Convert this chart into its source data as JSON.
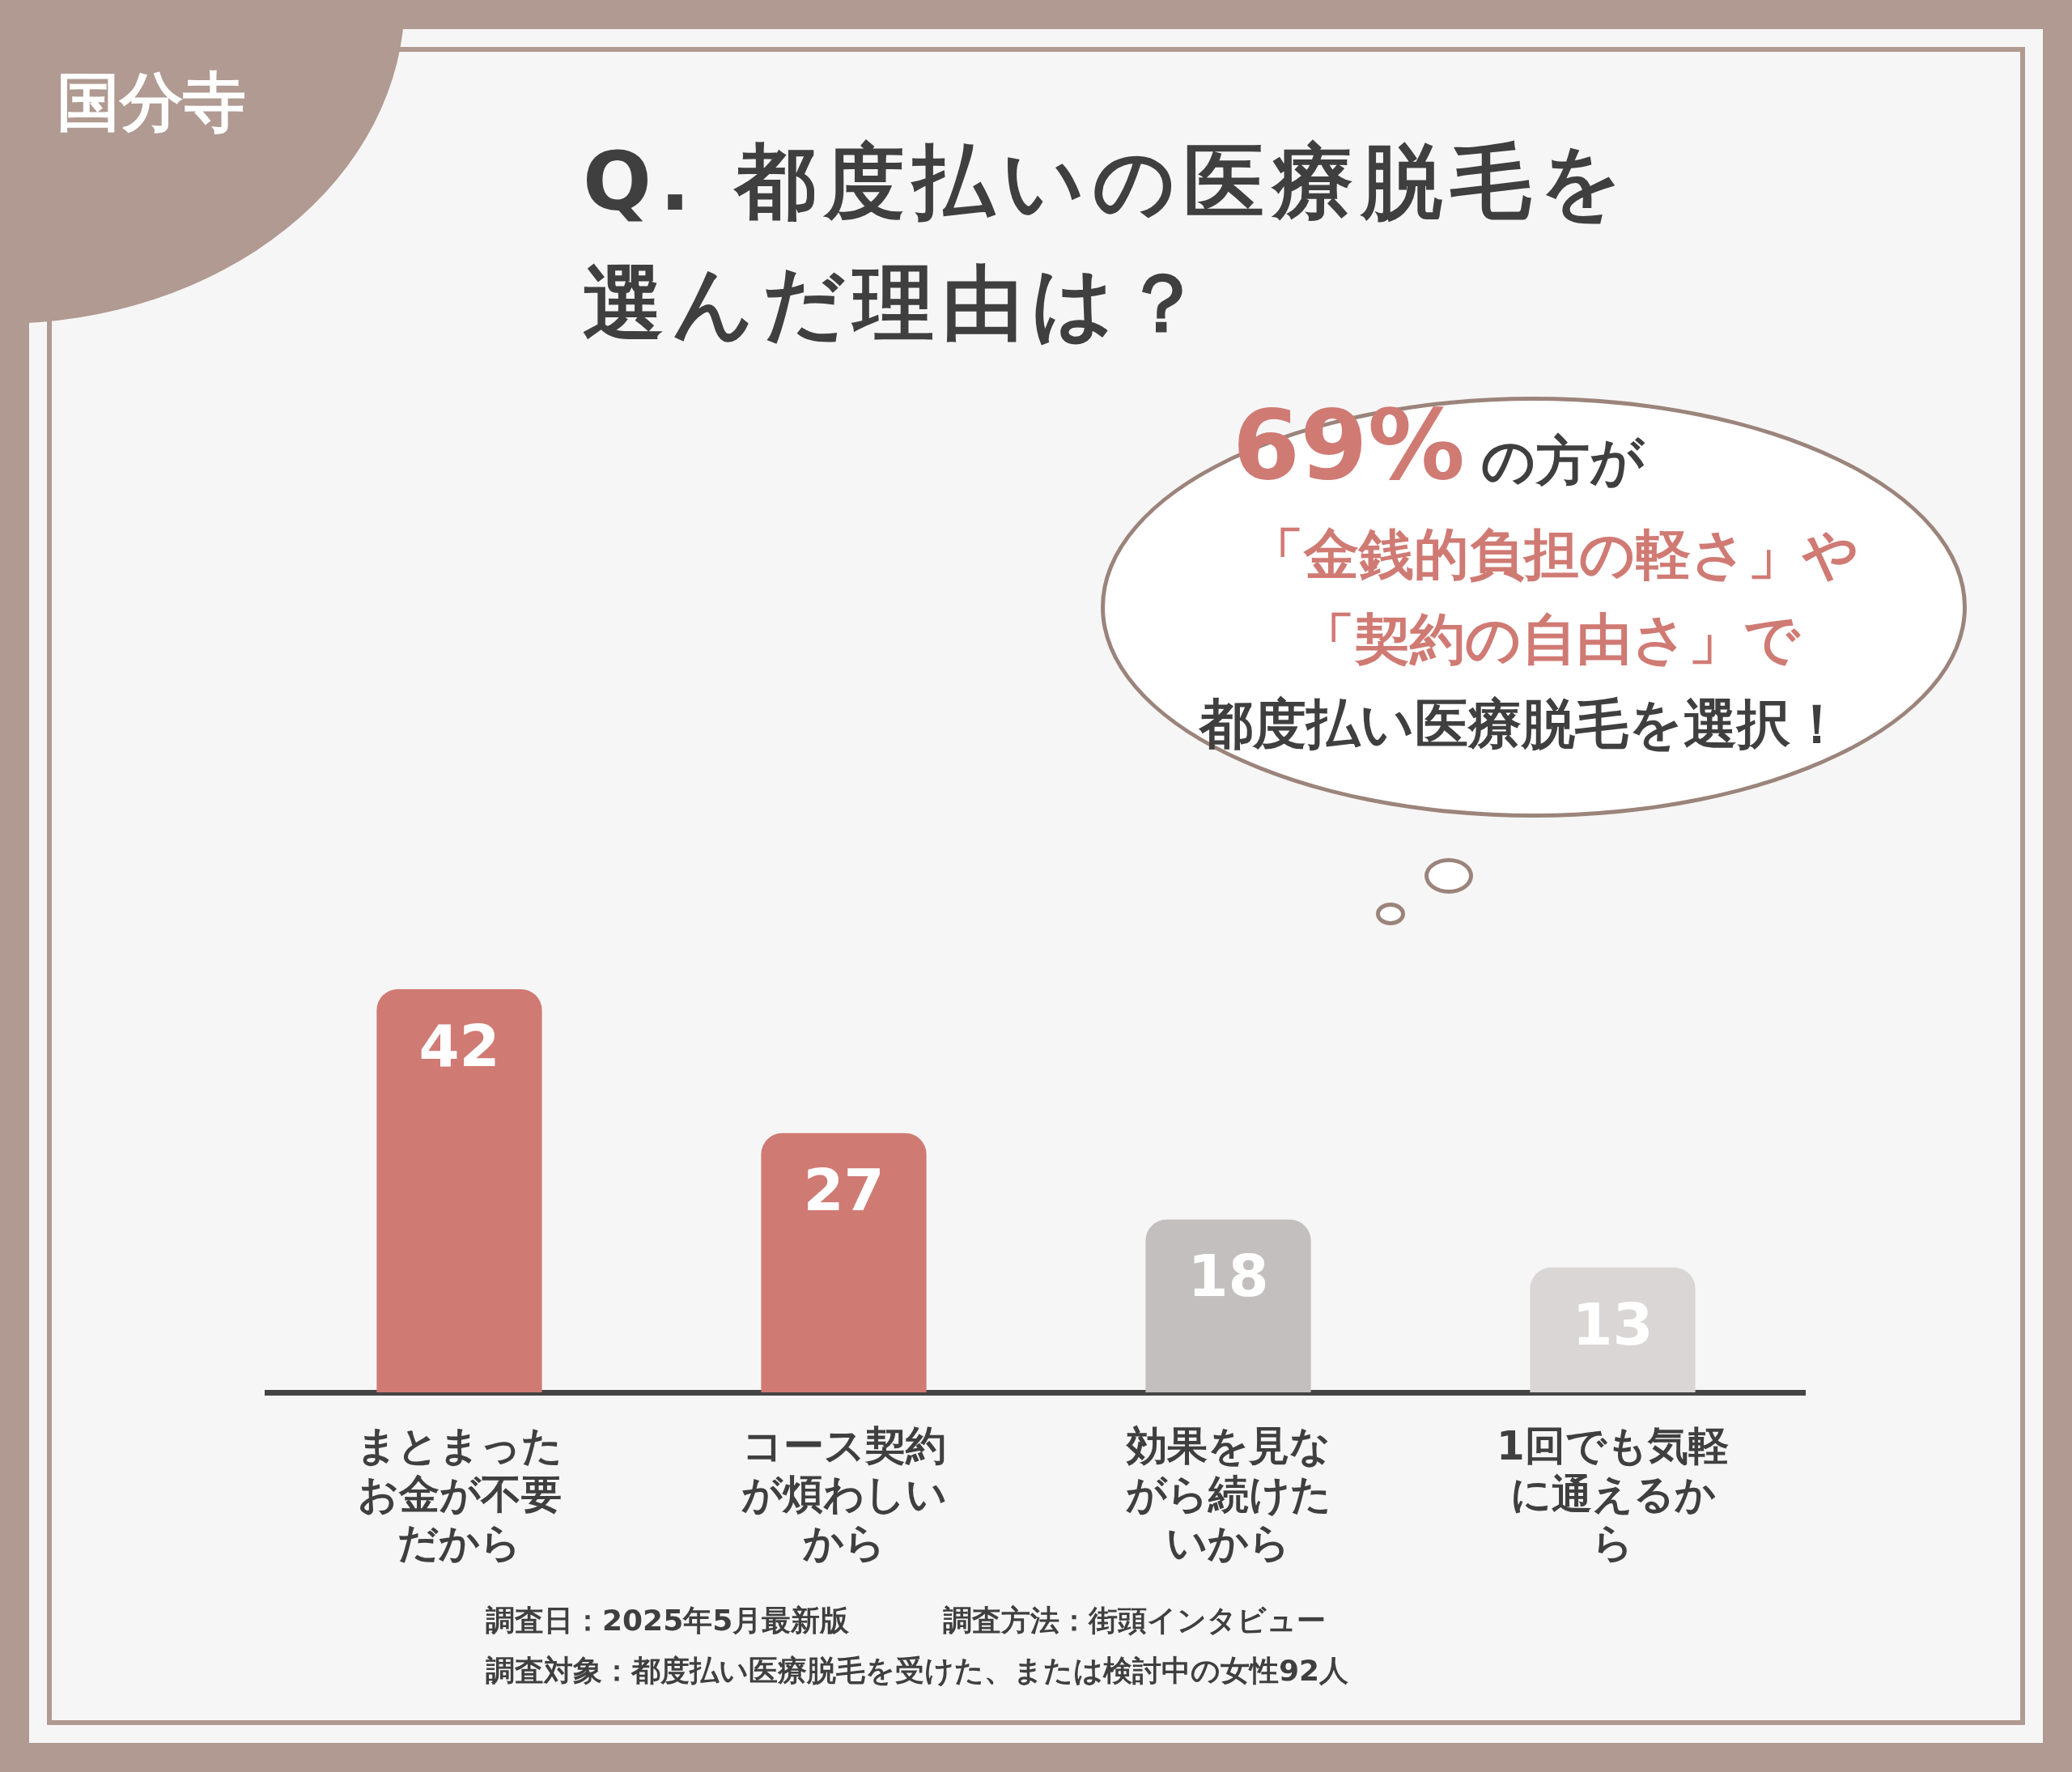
{
  "chart_data": {
    "type": "bar",
    "title": "Q. 都度払いの医療脱毛を選んだ理由は？",
    "categories": [
      "まとまったお金が不要だから",
      "コース契約が煩わしいから",
      "効果を見ながら続けたいから",
      "1回でも気軽に通えるから"
    ],
    "values": [
      42,
      27,
      18,
      13
    ],
    "colors": [
      "#d07a74",
      "#d07a74",
      "#c3bfbe",
      "#d9d6d5"
    ],
    "data_labels": true,
    "grid": false,
    "legend": false,
    "tick_labels": "x",
    "annotations": [
      "国分寺",
      "69%",
      "の方が",
      "「金銭的負担の軽さ」や",
      "「契約の自由さ」で",
      "都度払い医療脱毛を選択！",
      "調査日：2025年5月最新版",
      "調査方法：街頭インタビュー",
      "調査対象：都度払い医療脱毛を受けた、または検討中の女性92人"
    ]
  }
}
